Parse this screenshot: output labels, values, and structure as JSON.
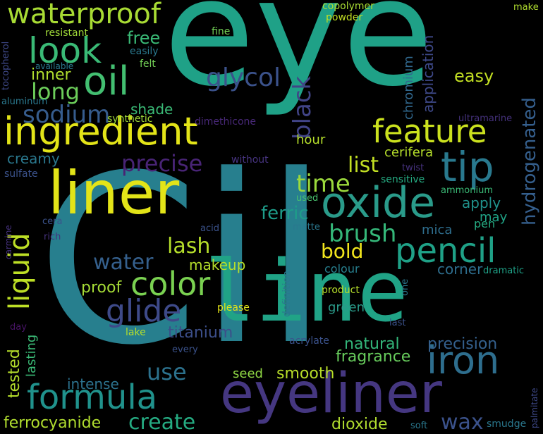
{
  "palette": {
    "background": "#000000",
    "yellow": "#e3e418",
    "lime": "#a0da39",
    "green": "#4ac16d",
    "teal": "#1fa187",
    "cyan": "#277f8e",
    "blue": "#365c8d",
    "indigo": "#46327e",
    "purple": "#440154"
  },
  "words": [
    {
      "text": "eye"
    },
    {
      "text": "Cil"
    },
    {
      "text": "line"
    },
    {
      "text": "liner"
    },
    {
      "text": "eyeliner"
    },
    {
      "text": "ingredient"
    },
    {
      "text": "oxide"
    },
    {
      "text": "tip"
    },
    {
      "text": "feature"
    },
    {
      "text": "waterproof"
    },
    {
      "text": "look"
    },
    {
      "text": "oil"
    },
    {
      "text": "long"
    },
    {
      "text": "sodium"
    },
    {
      "text": "glycol"
    },
    {
      "text": "black"
    },
    {
      "text": "pencil"
    },
    {
      "text": "iron"
    },
    {
      "text": "formula"
    },
    {
      "text": "liquid"
    },
    {
      "text": "color"
    },
    {
      "text": "glide"
    },
    {
      "text": "precise"
    },
    {
      "text": "time"
    },
    {
      "text": "list"
    },
    {
      "text": "ferric"
    },
    {
      "text": "brush"
    },
    {
      "text": "lash"
    },
    {
      "text": "bold"
    },
    {
      "text": "water"
    },
    {
      "text": "makeup"
    },
    {
      "text": "proof"
    },
    {
      "text": "titanium"
    },
    {
      "text": "use"
    },
    {
      "text": "create"
    },
    {
      "text": "ferrocyanide"
    },
    {
      "text": "wax"
    },
    {
      "text": "dioxide"
    },
    {
      "text": "smooth"
    },
    {
      "text": "natural"
    },
    {
      "text": "fragrance"
    },
    {
      "text": "precision"
    },
    {
      "text": "hydrogenated"
    },
    {
      "text": "application"
    },
    {
      "text": "chromium"
    },
    {
      "text": "easy"
    },
    {
      "text": "free"
    },
    {
      "text": "inner"
    },
    {
      "text": "shade"
    },
    {
      "text": "creamy"
    },
    {
      "text": "tested"
    },
    {
      "text": "lasting"
    },
    {
      "text": "intense"
    },
    {
      "text": "seed"
    },
    {
      "text": "green"
    },
    {
      "text": "apply"
    },
    {
      "text": "may"
    },
    {
      "text": "mica"
    },
    {
      "text": "pen"
    },
    {
      "text": "corner"
    },
    {
      "text": "colour"
    },
    {
      "text": "hour"
    },
    {
      "text": "cerifera"
    },
    {
      "text": "copolymer"
    },
    {
      "text": "powder"
    },
    {
      "text": "resistant"
    },
    {
      "text": "available"
    },
    {
      "text": "felt"
    },
    {
      "text": "easily"
    },
    {
      "text": "fine"
    },
    {
      "text": "tocopherol"
    },
    {
      "text": "aluminum"
    },
    {
      "text": "synthetic"
    },
    {
      "text": "dimethicone"
    },
    {
      "text": "ultramarine"
    },
    {
      "text": "without"
    },
    {
      "text": "sulfate"
    },
    {
      "text": "sensitive"
    },
    {
      "text": "twist"
    },
    {
      "text": "ammonium"
    },
    {
      "text": "used"
    },
    {
      "text": "cera"
    },
    {
      "text": "acid"
    },
    {
      "text": "matte"
    },
    {
      "text": "carmine"
    },
    {
      "text": "rich"
    },
    {
      "text": "dramatic"
    },
    {
      "text": "product"
    },
    {
      "text": "definition"
    },
    {
      "text": "please"
    },
    {
      "text": "lake"
    },
    {
      "text": "day"
    },
    {
      "text": "every"
    },
    {
      "text": "acrylate"
    },
    {
      "text": "last"
    },
    {
      "text": "one"
    },
    {
      "text": "make"
    },
    {
      "text": "soft"
    },
    {
      "text": "smudge"
    },
    {
      "text": "palmitate"
    }
  ]
}
